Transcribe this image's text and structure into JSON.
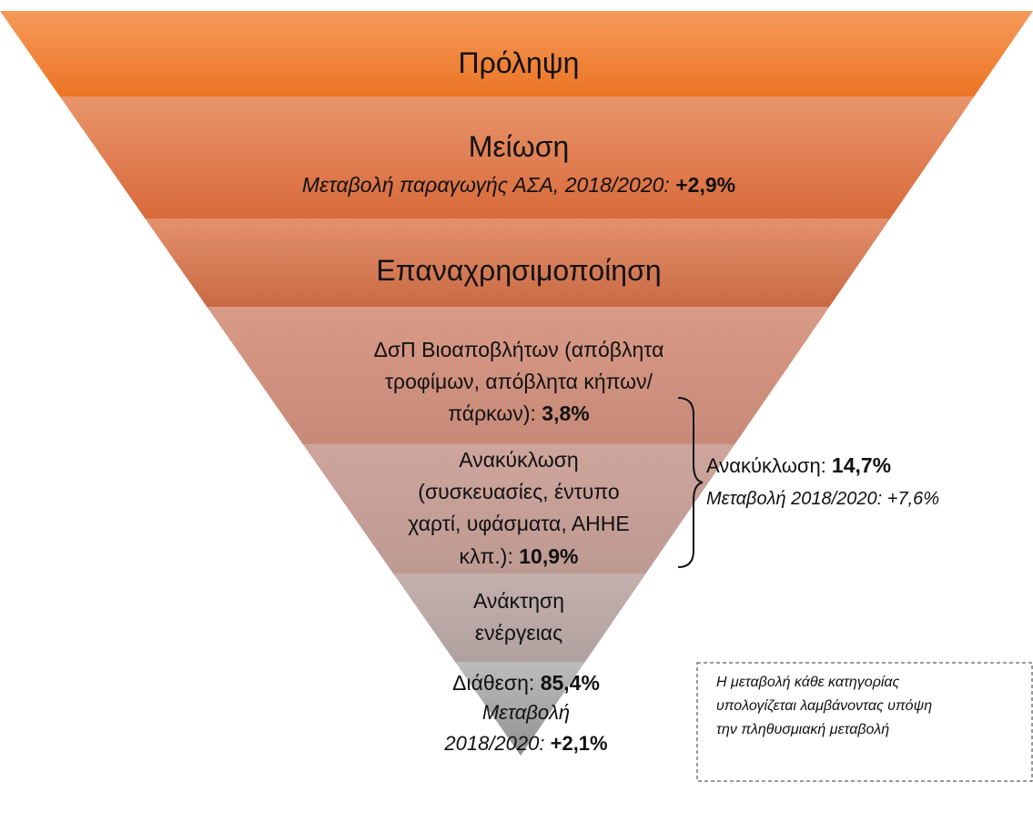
{
  "levels": [
    {
      "text": "Πρόληψη"
    },
    {
      "text": "Μείωση",
      "note": "Μεταβολή παραγωγής ΑΣΑ, 2018/2020:",
      "value": "+2,9%"
    },
    {
      "text": "Επαναχρησιμοποίηση"
    },
    {
      "lines": [
        "ΔσΠ Βιοαποβλήτων (απόβλητα",
        "τροφίμων, απόβλητα κήπων/",
        "πάρκων):"
      ],
      "value": "3,8%"
    },
    {
      "title": "Ανακύκλωση",
      "lines": [
        "(συσκευασίες, έντυπο",
        "χαρτί, υφάσματα, ΑΗΗΕ",
        "κλπ.):"
      ],
      "value": "10,9%"
    },
    {
      "lines": [
        "Ανάκτηση",
        "ενέργειας"
      ]
    },
    {
      "label": "Διάθεση:",
      "value": "85,4%",
      "note_lines": [
        "Μεταβολή",
        "2018/2020:"
      ],
      "note_value": "+2,1%"
    }
  ],
  "recycling_total": {
    "label": "Ανακύκλωση:",
    "value": "14,7%",
    "note": "Μεταβολή 2018/2020: +7,6%"
  },
  "footnote": [
    "Η μεταβολή κάθε κατηγορίας",
    "υπολογίζεται  λαμβάνοντας υπόψη",
    "την πληθυσμιακή μεταβολή"
  ]
}
